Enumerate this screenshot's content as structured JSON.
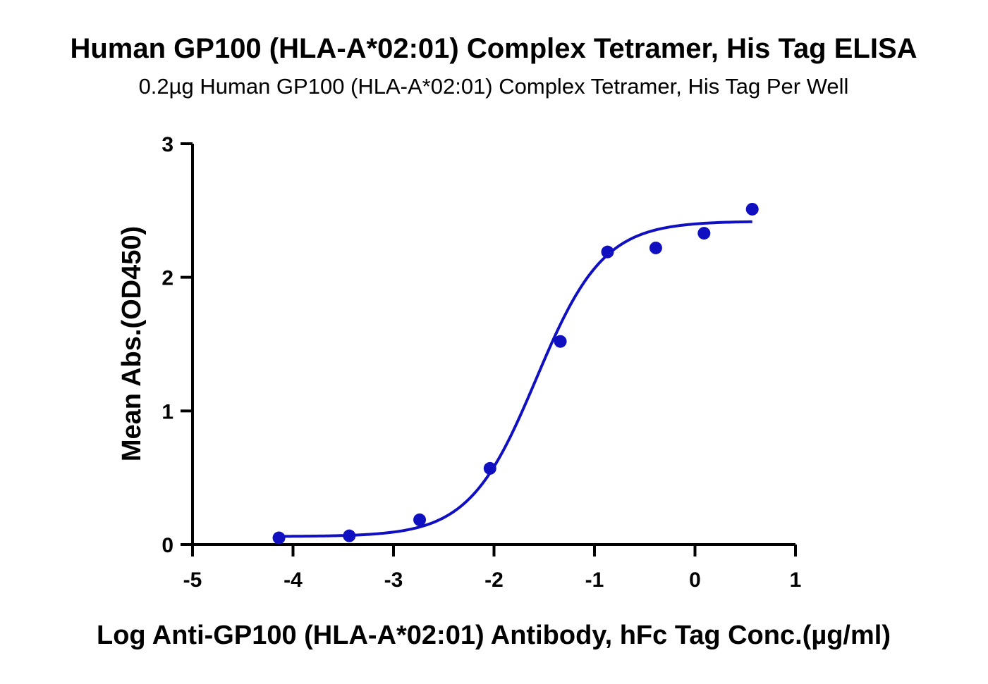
{
  "colors": {
    "series": "#1010c0",
    "axis": "#000000",
    "background": "#ffffff"
  },
  "chart_data": {
    "type": "scatter",
    "title": "Human GP100 (HLA-A*02:01) Complex Tetramer, His Tag ELISA",
    "subtitle": "0.2µg Human GP100 (HLA-A*02:01) Complex Tetramer, His Tag Per Well",
    "xlabel": "Log Anti-GP100 (HLA-A*02:01) Antibody, hFc Tag Conc.(µg/ml)",
    "ylabel": "Mean Abs.(OD450)",
    "xlim": [
      -5,
      1
    ],
    "ylim": [
      0,
      3
    ],
    "x_ticks": [
      -5,
      -4,
      -3,
      -2,
      -1,
      0,
      1
    ],
    "x_tick_labels": [
      "-5",
      "-4",
      "-3",
      "-2",
      "-1",
      "0",
      "1"
    ],
    "y_ticks": [
      0,
      1,
      2,
      3
    ],
    "y_tick_labels": [
      "0",
      "1",
      "2",
      "3"
    ],
    "grid": false,
    "legend": "none",
    "points": [
      {
        "x": -4.14,
        "y": 0.05
      },
      {
        "x": -3.44,
        "y": 0.065
      },
      {
        "x": -2.74,
        "y": 0.185
      },
      {
        "x": -2.04,
        "y": 0.57
      },
      {
        "x": -1.34,
        "y": 1.52
      },
      {
        "x": -0.87,
        "y": 2.19
      },
      {
        "x": -0.39,
        "y": 2.22
      },
      {
        "x": 0.09,
        "y": 2.33
      },
      {
        "x": 0.57,
        "y": 2.51
      }
    ],
    "fit_curve": {
      "model": "4PL",
      "bottom": 0.06,
      "top": 2.42,
      "log_ec50": -1.58,
      "hill_slope": 1.3,
      "x_range": [
        -4.14,
        0.57
      ]
    }
  }
}
